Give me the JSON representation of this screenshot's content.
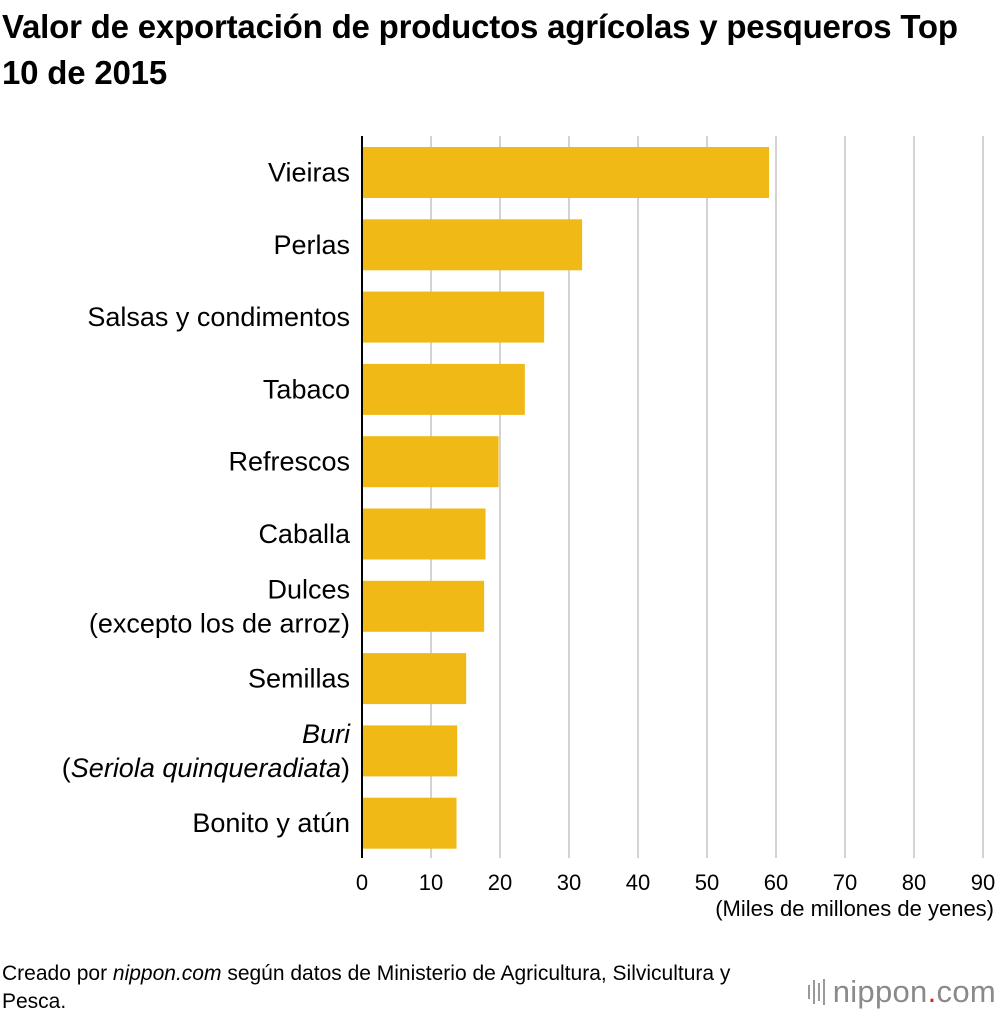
{
  "title": "Valor de exportación de productos agrícolas y pesqueros  Top 10 de 2015",
  "chart_data": {
    "type": "bar",
    "orientation": "horizontal",
    "categories": [
      [
        "Vieiras"
      ],
      [
        "Perlas"
      ],
      [
        "Salsas y condimentos"
      ],
      [
        "Tabaco"
      ],
      [
        "Refrescos"
      ],
      [
        "Caballa"
      ],
      [
        "Dulces",
        "(excepto los de arroz)"
      ],
      [
        "Semillas"
      ],
      [
        "Buri",
        "(Seriola quinqueradiata)"
      ],
      [
        "Bonito y atún"
      ]
    ],
    "italic_labels": [
      "Buri",
      "Seriola quinqueradiata"
    ],
    "values": [
      59.0,
      31.9,
      26.4,
      23.6,
      19.8,
      17.9,
      17.7,
      15.1,
      13.8,
      13.7
    ],
    "xlim": [
      0,
      90
    ],
    "xticks": [
      "0",
      "10",
      "20",
      "30",
      "40",
      "50",
      "60",
      "70",
      "80",
      "90"
    ],
    "xlabel": "(Miles de millones de yenes)",
    "bar_color": "#F1B915",
    "grid": true
  },
  "footer": {
    "prefix": "Creado por ",
    "source_italic": "nippon.com",
    "suffix": " según datos de Ministerio de Agricultura, Silvicultura y Pesca."
  },
  "logo": {
    "name": "nippon",
    "dot": ".",
    "tld": "com"
  }
}
